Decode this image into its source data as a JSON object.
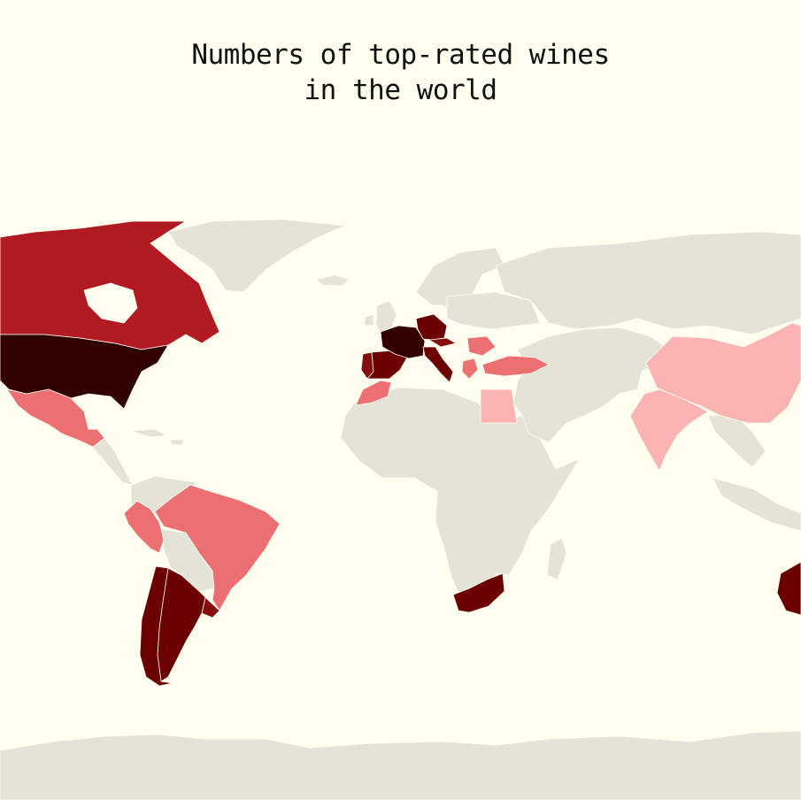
{
  "title": {
    "line1": "Numbers of top-rated wines",
    "line2": "in the world"
  },
  "colors": {
    "background": "#fffff0",
    "no_data": "#e3e3d8",
    "level_1": "#fbb3b3",
    "level_2": "#ec7071",
    "level_3": "#b11a21",
    "level_4": "#850d0d",
    "level_5": "#6c0000",
    "level_6": "#330000"
  },
  "regions": [
    {
      "name": "United States",
      "level": "level_6"
    },
    {
      "name": "France",
      "level": "level_6"
    },
    {
      "name": "Italy",
      "level": "level_5"
    },
    {
      "name": "Spain",
      "level": "level_5"
    },
    {
      "name": "Portugal",
      "level": "level_4"
    },
    {
      "name": "Germany",
      "level": "level_5"
    },
    {
      "name": "Austria",
      "level": "level_4"
    },
    {
      "name": "Argentina",
      "level": "level_5"
    },
    {
      "name": "Chile",
      "level": "level_5"
    },
    {
      "name": "South Africa",
      "level": "level_5"
    },
    {
      "name": "Australia",
      "level": "level_5"
    },
    {
      "name": "Canada",
      "level": "level_3"
    },
    {
      "name": "Mexico",
      "level": "level_2"
    },
    {
      "name": "Brazil",
      "level": "level_2"
    },
    {
      "name": "Peru",
      "level": "level_2"
    },
    {
      "name": "Uruguay",
      "level": "level_4"
    },
    {
      "name": "Turkey",
      "level": "level_2"
    },
    {
      "name": "Romania",
      "level": "level_2"
    },
    {
      "name": "Greece",
      "level": "level_2"
    },
    {
      "name": "Morocco",
      "level": "level_2"
    },
    {
      "name": "Egypt",
      "level": "level_1"
    },
    {
      "name": "China",
      "level": "level_1"
    },
    {
      "name": "India",
      "level": "level_1"
    }
  ]
}
